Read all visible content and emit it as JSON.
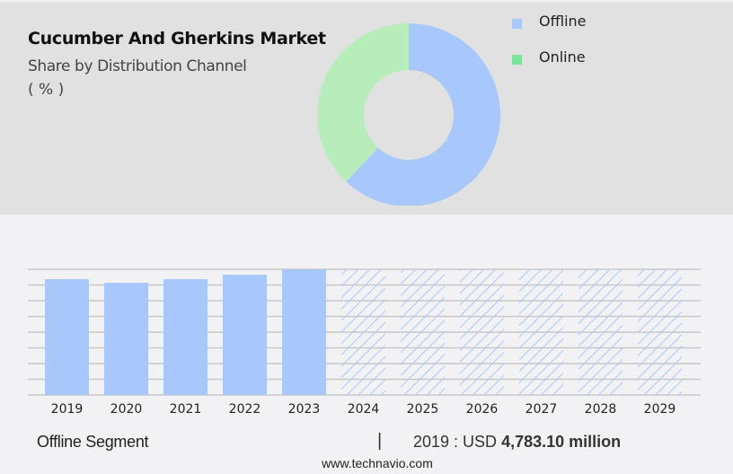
{
  "header": {
    "title": "Cucumber And Gherkins Market",
    "subtitle": "Share by Distribution Channel",
    "unit": "( % )"
  },
  "legend": [
    {
      "label": "Offline",
      "color": "#a8c8fc"
    },
    {
      "label": "Online",
      "color": "#7ce49a"
    }
  ],
  "footer": {
    "segment_label": "Offline Segment",
    "separator": "|",
    "value_prefix": "2019 : USD ",
    "value_bold": "4,783.10 million",
    "url": "www.technavio.com"
  },
  "chart_data": [
    {
      "type": "pie",
      "variant": "donut",
      "title": "Cucumber And Gherkins Market",
      "subtitle": "Share by Distribution Channel ( % )",
      "categories": [
        "Offline",
        "Online"
      ],
      "values": [
        62,
        38
      ],
      "colors": [
        "#a8c8fc",
        "#b7edbb"
      ],
      "legend_position": "right"
    },
    {
      "type": "bar",
      "title": "Offline Segment",
      "categories": [
        "2019",
        "2020",
        "2021",
        "2022",
        "2023",
        "2024",
        "2025",
        "2026",
        "2027",
        "2028",
        "2029"
      ],
      "values": [
        4783.1,
        4640,
        4780,
        4960,
        5180,
        null,
        null,
        null,
        null,
        null,
        null
      ],
      "forecast_years": [
        "2024",
        "2025",
        "2026",
        "2027",
        "2028",
        "2029"
      ],
      "forecast_style": "hatched",
      "annotation": "2019 : USD 4,783.10 million",
      "xlabel": "",
      "ylabel": "",
      "grid": true,
      "color": "#a8c8fc"
    }
  ]
}
